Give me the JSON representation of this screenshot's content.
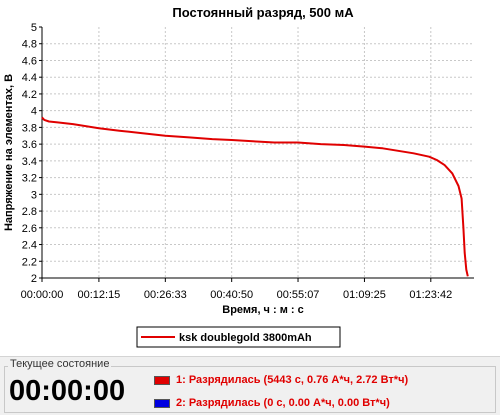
{
  "chart_data": {
    "type": "line",
    "title": "Постоянный разряд, 500 мА",
    "xlabel": "Время, ч : м : с",
    "ylabel": "Напряжение на элементах, В",
    "ylim": [
      2,
      5
    ],
    "yticks": [
      "2",
      "2.2",
      "2.4",
      "2.6",
      "2.8",
      "3",
      "3.2",
      "3.4",
      "3.6",
      "3.8",
      "4",
      "4.2",
      "4.4",
      "4.6",
      "4.8",
      "5"
    ],
    "xlim_seconds": [
      0,
      5580
    ],
    "xticks": [
      {
        "label": "00:00:00",
        "seconds": 0
      },
      {
        "label": "00:12:15",
        "seconds": 735
      },
      {
        "label": "00:26:33",
        "seconds": 1593
      },
      {
        "label": "00:40:50",
        "seconds": 2450
      },
      {
        "label": "00:55:07",
        "seconds": 3307
      },
      {
        "label": "01:09:25",
        "seconds": 4165
      },
      {
        "label": "01:23:42",
        "seconds": 5022
      }
    ],
    "grid": true,
    "legend_position": "bottom-center",
    "series": [
      {
        "name": "ksk doublegold 3800mAh",
        "color": "#e00000",
        "x_seconds": [
          0,
          30,
          90,
          200,
          400,
          735,
          1000,
          1300,
          1593,
          1900,
          2200,
          2450,
          2800,
          3000,
          3307,
          3600,
          3900,
          4165,
          4400,
          4600,
          4800,
          5000,
          5100,
          5200,
          5300,
          5380,
          5420,
          5443,
          5460,
          5480,
          5500
        ],
        "values": [
          3.92,
          3.89,
          3.87,
          3.86,
          3.84,
          3.79,
          3.76,
          3.73,
          3.7,
          3.68,
          3.66,
          3.65,
          3.63,
          3.62,
          3.62,
          3.6,
          3.59,
          3.57,
          3.55,
          3.52,
          3.49,
          3.45,
          3.41,
          3.35,
          3.25,
          3.1,
          2.95,
          2.6,
          2.3,
          2.1,
          2.02
        ]
      }
    ]
  },
  "status": {
    "panel_label": "Текущее состояние",
    "timer": "00:00:00",
    "report_1": "1: Разрядилась (5443 с, 0.76 А*ч, 2.72 Вт*ч)",
    "report_1_color": "#e00000",
    "report_2": "2: Разрядилась (0 с, 0.00 А*ч, 0.00 Вт*ч)",
    "report_2_color": "#0000e0"
  }
}
